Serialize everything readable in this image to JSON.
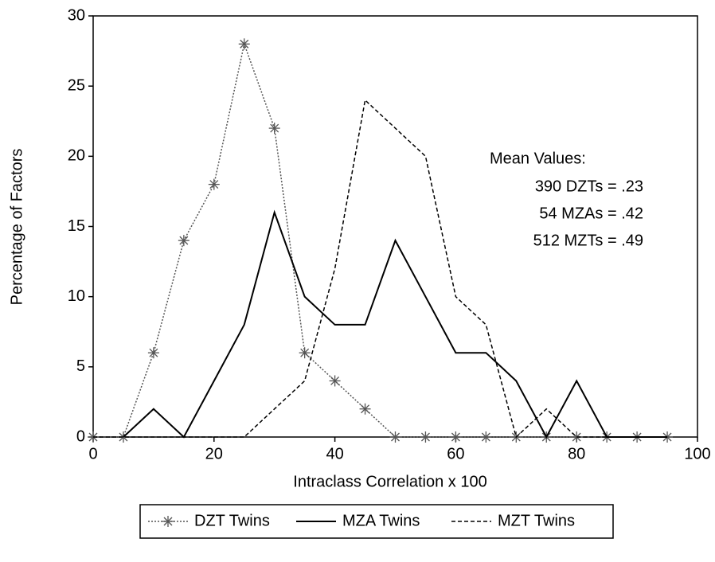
{
  "chart_data": {
    "type": "line",
    "x": [
      0,
      5,
      10,
      15,
      20,
      25,
      30,
      35,
      40,
      45,
      50,
      55,
      60,
      65,
      70,
      75,
      80,
      85,
      90,
      95
    ],
    "series": [
      {
        "name": "DZT Twins",
        "color": "#555555",
        "dash": "dotted",
        "marker": "asterisk",
        "values": [
          0,
          0,
          6,
          14,
          18,
          28,
          22,
          6,
          4,
          2,
          0,
          0,
          0,
          0,
          0,
          0,
          0,
          0,
          0,
          0
        ]
      },
      {
        "name": "MZA Twins",
        "color": "#000000",
        "dash": "solid",
        "marker": "none",
        "values": [
          null,
          0,
          2,
          0,
          4,
          8,
          16,
          10,
          8,
          8,
          14,
          10,
          6,
          6,
          4,
          0,
          4,
          0,
          0,
          0
        ]
      },
      {
        "name": "MZT Twins",
        "color": "#000000",
        "dash": "dashed",
        "marker": "none",
        "values": [
          0,
          0,
          0,
          0,
          0,
          0,
          2,
          4,
          12,
          24,
          22,
          20,
          10,
          8,
          0,
          2,
          0,
          0,
          0,
          0
        ]
      }
    ],
    "xlabel": "Intraclass Correlation x 100",
    "ylabel": "Percentage of Factors",
    "xlim": [
      0,
      100
    ],
    "xticks": [
      0,
      20,
      40,
      60,
      80,
      100
    ],
    "ylim": [
      0,
      30
    ],
    "yticks": [
      0,
      5,
      10,
      15,
      20,
      25,
      30
    ],
    "annotations": [
      "Mean Values:",
      "390 DZTs = .23",
      "54 MZAs = .42",
      "512 MZTs = .49"
    ],
    "legend": "bottom"
  }
}
